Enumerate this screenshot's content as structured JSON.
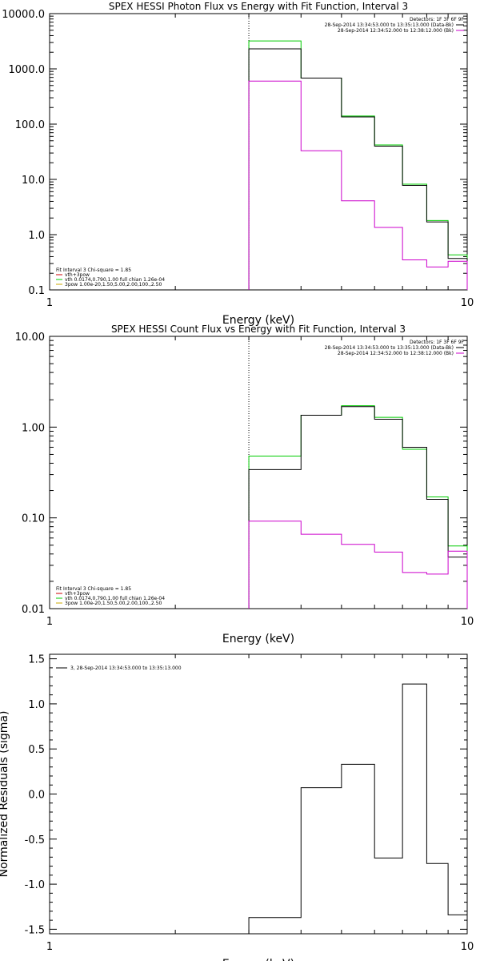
{
  "chart_data": [
    {
      "type": "line",
      "title": "SPEX HESSI Photon Flux vs Energy with Fit Function, Interval 3",
      "xlabel": "Energy (keV)",
      "ylabel": "",
      "xscale": "log",
      "yscale": "log",
      "xlim": [
        1,
        10
      ],
      "ylim": [
        0.1,
        10000
      ],
      "xtick_labels": [
        "1",
        "10"
      ],
      "ytick_labels": [
        "0.1",
        "1.0",
        "10.0",
        "100.0",
        "1000.0",
        "10000.0"
      ],
      "ytick_values": [
        0.1,
        1,
        10,
        100,
        1000,
        10000
      ],
      "vline_x": 3,
      "bin_edges": [
        3,
        4,
        5,
        6,
        7,
        8,
        9,
        10
      ],
      "legend_top": {
        "position": "top-right",
        "header": "Detectors: 1F 3F 6F 9F",
        "entries": [
          {
            "text": "28-Sep-2014 13:34:53.000 to 13:35:13.000 (Data-Bk)",
            "color": "#000000"
          },
          {
            "text": "28-Sep-2014 12:34:52.000 to 12:38:12.000 (Bk)",
            "color": "#cc00cc"
          }
        ]
      },
      "legend_bottom": {
        "position": "bottom-left",
        "header": "Fit Interval 3   Chi-square = 1.85",
        "entries": [
          {
            "text": "vth+3pow",
            "color": "#cc0000"
          },
          {
            "text": "vth 0.0174,0.790,1.00  full chian 1.26e-04",
            "color": "#00cc00"
          },
          {
            "text": "3pow 1.00e-20,1.50,5.00,2.00,100.,2.50",
            "color": "#ccaa00"
          }
        ]
      },
      "series": [
        {
          "color": "#00cc00",
          "values": [
            3200,
            680,
            140,
            42,
            8.2,
            1.8,
            0.43
          ]
        },
        {
          "color": "#000000",
          "values": [
            2300,
            680,
            135,
            40,
            7.8,
            1.7,
            0.37
          ]
        },
        {
          "color": "#cc00cc",
          "values": [
            600,
            33,
            4.1,
            1.35,
            0.35,
            0.26,
            0.33
          ]
        }
      ]
    },
    {
      "type": "line",
      "title": "SPEX HESSI Count Flux vs Energy with Fit Function, Interval 3",
      "xlabel": "Energy (keV)",
      "ylabel": "",
      "xscale": "log",
      "yscale": "log",
      "xlim": [
        1,
        10
      ],
      "ylim": [
        0.01,
        10
      ],
      "xtick_labels": [
        "1",
        "10"
      ],
      "ytick_labels": [
        "0.01",
        "0.10",
        "1.00",
        "10.00"
      ],
      "ytick_values": [
        0.01,
        0.1,
        1,
        10
      ],
      "vline_x": 3,
      "bin_edges": [
        3,
        4,
        5,
        6,
        7,
        8,
        9,
        10
      ],
      "legend_top": {
        "position": "top-right",
        "header": "Detectors: 1F 3F 6F 9F",
        "entries": [
          {
            "text": "28-Sep-2014 13:34:53.000 to 13:35:13.000 (Data-Bk)",
            "color": "#000000"
          },
          {
            "text": "28-Sep-2014 12:34:52.000 to 12:38:12.000 (Bk)",
            "color": "#cc00cc"
          }
        ]
      },
      "legend_bottom": {
        "position": "bottom-left",
        "header": "Fit Interval 3   Chi-square = 1.85",
        "entries": [
          {
            "text": "vth+3pow",
            "color": "#cc0000"
          },
          {
            "text": "vth 0.0174,0.790,1.00  full chian 1.26e-04",
            "color": "#00cc00"
          },
          {
            "text": "3pow 1.00e-20,1.50,5.00,2.00,100.,2.50",
            "color": "#ccaa00"
          }
        ]
      },
      "series": [
        {
          "color": "#00cc00",
          "values": [
            0.48,
            1.35,
            1.72,
            1.28,
            0.57,
            0.17,
            0.049
          ]
        },
        {
          "color": "#000000",
          "values": [
            0.34,
            1.35,
            1.68,
            1.22,
            0.6,
            0.16,
            0.037
          ]
        },
        {
          "color": "#cc00cc",
          "values": [
            0.092,
            0.066,
            0.051,
            0.042,
            0.025,
            0.024,
            0.043
          ]
        }
      ]
    },
    {
      "type": "line",
      "title": "",
      "xlabel": "Energy (keV)",
      "ylabel": "Normalized Residuals (sigma)",
      "xscale": "log",
      "yscale": "linear",
      "xlim": [
        1,
        10
      ],
      "ylim": [
        -1.55,
        1.55
      ],
      "xtick_labels": [
        "1",
        "10"
      ],
      "ytick_labels": [
        "-1.5",
        "-1.0",
        "-0.5",
        "0.0",
        "0.5",
        "1.0",
        "1.5"
      ],
      "ytick_values": [
        -1.5,
        -1.0,
        -0.5,
        0.0,
        0.5,
        1.0,
        1.5
      ],
      "bin_edges": [
        3,
        4,
        5,
        6,
        7,
        8,
        9,
        10
      ],
      "legend_top": {
        "position": "top-left",
        "header": "",
        "entries": [
          {
            "text": "3, 28-Sep-2014 13:34:53.000 to 13:35:13.000",
            "color": "#000000"
          }
        ]
      },
      "series": [
        {
          "color": "#000000",
          "values": [
            -1.37,
            0.07,
            0.33,
            -0.71,
            1.22,
            -0.77,
            -1.34
          ]
        }
      ]
    }
  ]
}
